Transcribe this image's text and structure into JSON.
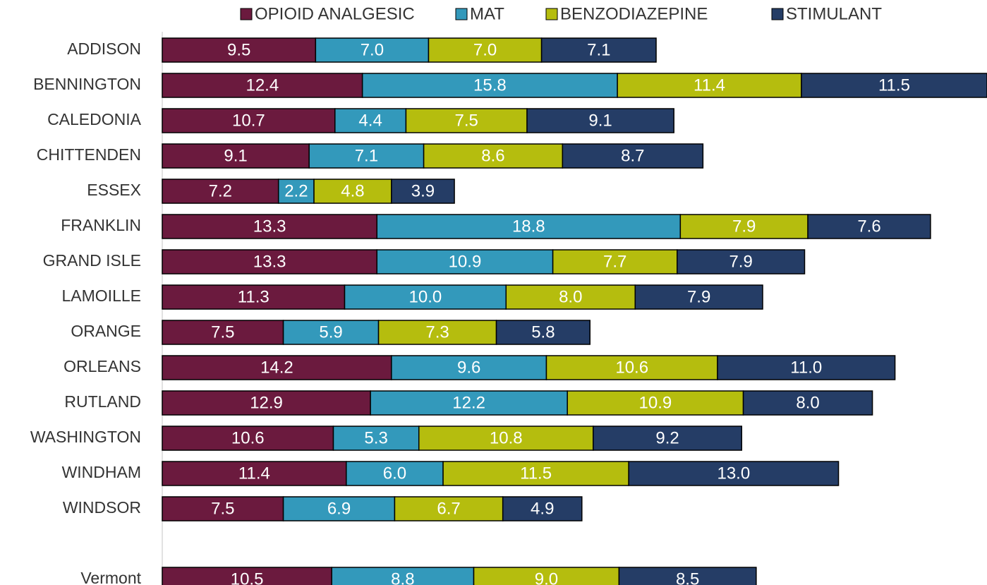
{
  "chart_data": {
    "type": "stacked-bar-horizontal",
    "categories": [
      "ADDISON",
      "BENNINGTON",
      "CALEDONIA",
      "CHITTENDEN",
      "ESSEX",
      "FRANKLIN",
      "GRAND ISLE",
      "LAMOILLE",
      "ORANGE",
      "ORLEANS",
      "RUTLAND",
      "WASHINGTON",
      "WINDHAM",
      "WINDSOR",
      null,
      "Vermont"
    ],
    "xlim": [
      0,
      51.1
    ],
    "legend": "top",
    "series": [
      {
        "name": "OPIOID ANALGESIC",
        "color": "#6b1a3e",
        "values": [
          9.5,
          12.4,
          10.7,
          9.1,
          7.2,
          13.3,
          13.3,
          11.3,
          7.5,
          14.2,
          12.9,
          10.6,
          11.4,
          7.5,
          null,
          10.5
        ],
        "value_labels": [
          "9.5",
          "12.4",
          "10.7",
          "9.1",
          "7.2",
          "13.3",
          "13.3",
          "11.3",
          "7.5",
          "14.2",
          "12.9",
          "10.6",
          "11.4",
          "7.5",
          null,
          "10.5"
        ]
      },
      {
        "name": "MAT",
        "color": "#3399bb",
        "values": [
          7.0,
          15.8,
          4.4,
          7.1,
          2.2,
          18.8,
          10.9,
          10.0,
          5.9,
          9.6,
          12.2,
          5.3,
          6.0,
          6.9,
          null,
          8.8
        ],
        "value_labels": [
          "7.0",
          "15.8",
          "4.4",
          "7.1",
          "2.2",
          "18.8",
          "10.9",
          "10.0",
          "5.9",
          "9.6",
          "12.2",
          "5.3",
          "6.0",
          "6.9",
          null,
          "8.8"
        ]
      },
      {
        "name": "BENZODIAZEPINE",
        "color": "#b5bd0e",
        "values": [
          7.0,
          11.4,
          7.5,
          8.6,
          4.8,
          7.9,
          7.7,
          8.0,
          7.3,
          10.6,
          10.9,
          10.8,
          11.5,
          6.7,
          null,
          9.0
        ],
        "value_labels": [
          "7.0",
          "11.4",
          "7.5",
          "8.6",
          "4.8",
          "7.9",
          "7.7",
          "8.0",
          "7.3",
          "10.6",
          "10.9",
          "10.8",
          "11.5",
          "6.7",
          null,
          "9.0"
        ]
      },
      {
        "name": "STIMULANT",
        "color": "#253d66",
        "values": [
          7.1,
          11.5,
          9.1,
          8.7,
          3.9,
          7.6,
          7.9,
          7.9,
          5.8,
          11.0,
          8.0,
          9.2,
          13.0,
          4.9,
          null,
          8.5
        ],
        "value_labels": [
          "7.1",
          "11.5",
          "9.1",
          "8.7",
          "3.9",
          "7.6",
          "7.9",
          "7.9",
          "5.8",
          "11.0",
          "8.0",
          "9.2",
          "13.0",
          "4.9",
          null,
          "8.5"
        ]
      }
    ]
  }
}
